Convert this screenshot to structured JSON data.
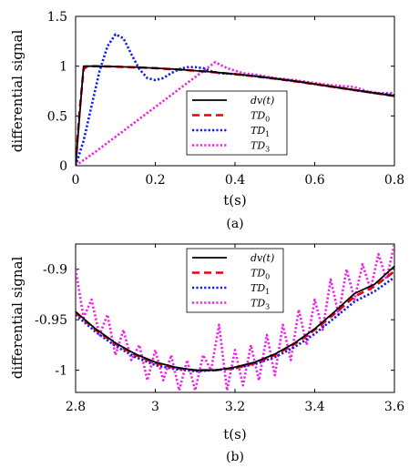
{
  "chart_data": [
    {
      "type": "line",
      "caption": "(a)",
      "xlabel": "t(s)",
      "ylabel": "differential signal",
      "xlim": [
        0,
        0.8
      ],
      "ylim": [
        0,
        1.5
      ],
      "xticks": [
        0,
        0.2,
        0.4,
        0.6,
        0.8
      ],
      "yticks": [
        0,
        0.5,
        1,
        1.5
      ],
      "xtick_labels": [
        "0",
        "0.2",
        "0.4",
        "0.6",
        "0.8"
      ],
      "ytick_labels": [
        "0",
        "0.5",
        "1",
        "1.5"
      ],
      "legend_position": "center-right",
      "series": [
        {
          "name": "dv(t)",
          "label_main": "dv",
          "label_sub": "",
          "label_suffix": "(t)",
          "color": "#000000",
          "style": "solid",
          "points": [
            [
              0.0,
              0.0
            ],
            [
              0.02,
              1.0
            ],
            [
              0.05,
              1.0
            ],
            [
              0.1,
              0.995
            ],
            [
              0.15,
              0.99
            ],
            [
              0.2,
              0.98
            ],
            [
              0.25,
              0.97
            ],
            [
              0.3,
              0.955
            ],
            [
              0.35,
              0.94
            ],
            [
              0.4,
              0.92
            ],
            [
              0.45,
              0.9
            ],
            [
              0.5,
              0.875
            ],
            [
              0.55,
              0.85
            ],
            [
              0.6,
              0.82
            ],
            [
              0.65,
              0.79
            ],
            [
              0.7,
              0.76
            ],
            [
              0.75,
              0.73
            ],
            [
              0.8,
              0.7
            ]
          ]
        },
        {
          "name": "TD0",
          "label_main": "TD",
          "label_sub": "0",
          "label_suffix": "",
          "color": "#e8000b",
          "style": "dashed",
          "points": [
            [
              0.0,
              0.0
            ],
            [
              0.01,
              0.55
            ],
            [
              0.02,
              0.97
            ],
            [
              0.03,
              1.0
            ],
            [
              0.05,
              1.0
            ],
            [
              0.1,
              0.995
            ],
            [
              0.2,
              0.98
            ],
            [
              0.3,
              0.955
            ],
            [
              0.4,
              0.92
            ],
            [
              0.5,
              0.875
            ],
            [
              0.6,
              0.82
            ],
            [
              0.7,
              0.76
            ],
            [
              0.8,
              0.7
            ]
          ]
        },
        {
          "name": "TD1",
          "label_main": "TD",
          "label_sub": "1",
          "label_suffix": "",
          "color": "#0b1bf2",
          "style": "dotted",
          "points": [
            [
              0.0,
              0.0
            ],
            [
              0.02,
              0.25
            ],
            [
              0.04,
              0.6
            ],
            [
              0.06,
              0.95
            ],
            [
              0.08,
              1.2
            ],
            [
              0.1,
              1.32
            ],
            [
              0.12,
              1.28
            ],
            [
              0.14,
              1.12
            ],
            [
              0.16,
              0.97
            ],
            [
              0.18,
              0.88
            ],
            [
              0.2,
              0.86
            ],
            [
              0.22,
              0.88
            ],
            [
              0.24,
              0.93
            ],
            [
              0.26,
              0.97
            ],
            [
              0.28,
              0.99
            ],
            [
              0.3,
              0.99
            ],
            [
              0.32,
              0.98
            ],
            [
              0.34,
              0.95
            ],
            [
              0.36,
              0.93
            ],
            [
              0.4,
              0.92
            ],
            [
              0.45,
              0.9
            ],
            [
              0.5,
              0.875
            ],
            [
              0.55,
              0.85
            ],
            [
              0.6,
              0.82
            ],
            [
              0.65,
              0.79
            ],
            [
              0.7,
              0.76
            ],
            [
              0.75,
              0.73
            ],
            [
              0.8,
              0.71
            ]
          ]
        },
        {
          "name": "TD3",
          "label_main": "TD",
          "label_sub": "3",
          "label_suffix": "",
          "color": "#f020e8",
          "style": "dotted",
          "points": [
            [
              0.0,
              0.0
            ],
            [
              0.05,
              0.14
            ],
            [
              0.1,
              0.29
            ],
            [
              0.15,
              0.44
            ],
            [
              0.2,
              0.59
            ],
            [
              0.25,
              0.74
            ],
            [
              0.3,
              0.89
            ],
            [
              0.35,
              1.04
            ],
            [
              0.38,
              0.98
            ],
            [
              0.42,
              0.93
            ],
            [
              0.46,
              0.91
            ],
            [
              0.5,
              0.88
            ],
            [
              0.55,
              0.86
            ],
            [
              0.6,
              0.83
            ],
            [
              0.64,
              0.81
            ],
            [
              0.67,
              0.8
            ],
            [
              0.7,
              0.79
            ],
            [
              0.73,
              0.75
            ],
            [
              0.76,
              0.73
            ],
            [
              0.8,
              0.73
            ]
          ]
        }
      ]
    },
    {
      "type": "line",
      "caption": "(b)",
      "xlabel": "t(s)",
      "ylabel": "differential signal",
      "xlim": [
        2.8,
        3.6
      ],
      "ylim": [
        -1.022,
        -0.875
      ],
      "xticks": [
        2.8,
        3,
        3.2,
        3.4,
        3.6
      ],
      "yticks": [
        -1,
        -0.95,
        -0.9
      ],
      "xtick_labels": [
        "2.8",
        "3",
        "3.2",
        "3.4",
        "3.6"
      ],
      "ytick_labels": [
        "-1",
        "-0.95",
        "-0.9"
      ],
      "legend_position": "top-center",
      "series": [
        {
          "name": "dv(t)",
          "label_main": "dv",
          "label_sub": "",
          "label_suffix": "(t)",
          "color": "#000000",
          "style": "solid",
          "points": [
            [
              2.8,
              -0.942
            ],
            [
              2.85,
              -0.959
            ],
            [
              2.9,
              -0.973
            ],
            [
              2.95,
              -0.984
            ],
            [
              3.0,
              -0.992
            ],
            [
              3.05,
              -0.997
            ],
            [
              3.1,
              -1.0
            ],
            [
              3.15,
              -1.0
            ],
            [
              3.2,
              -0.997
            ],
            [
              3.25,
              -0.992
            ],
            [
              3.3,
              -0.984
            ],
            [
              3.35,
              -0.973
            ],
            [
              3.4,
              -0.959
            ],
            [
              3.45,
              -0.942
            ],
            [
              3.5,
              -0.924
            ],
            [
              3.55,
              -0.915
            ],
            [
              3.6,
              -0.897
            ]
          ]
        },
        {
          "name": "TD0",
          "label_main": "TD",
          "label_sub": "0",
          "label_suffix": "",
          "color": "#e8000b",
          "style": "dashed",
          "points": [
            [
              2.8,
              -0.943
            ],
            [
              2.85,
              -0.96
            ],
            [
              2.9,
              -0.974
            ],
            [
              2.95,
              -0.985
            ],
            [
              3.0,
              -0.993
            ],
            [
              3.05,
              -0.998
            ],
            [
              3.1,
              -1.0
            ],
            [
              3.15,
              -1.0
            ],
            [
              3.2,
              -0.998
            ],
            [
              3.25,
              -0.993
            ],
            [
              3.3,
              -0.985
            ],
            [
              3.35,
              -0.974
            ],
            [
              3.4,
              -0.96
            ],
            [
              3.45,
              -0.944
            ],
            [
              3.5,
              -0.927
            ],
            [
              3.55,
              -0.917
            ],
            [
              3.6,
              -0.902
            ]
          ]
        },
        {
          "name": "TD1",
          "label_main": "TD",
          "label_sub": "1",
          "label_suffix": "",
          "color": "#0b1bf2",
          "style": "dotted",
          "points": [
            [
              2.8,
              -0.945
            ],
            [
              2.85,
              -0.962
            ],
            [
              2.9,
              -0.976
            ],
            [
              2.95,
              -0.987
            ],
            [
              3.0,
              -0.995
            ],
            [
              3.05,
              -0.999
            ],
            [
              3.1,
              -1.001
            ],
            [
              3.15,
              -1.0
            ],
            [
              3.2,
              -0.998
            ],
            [
              3.25,
              -0.994
            ],
            [
              3.3,
              -0.987
            ],
            [
              3.35,
              -0.977
            ],
            [
              3.4,
              -0.964
            ],
            [
              3.45,
              -0.948
            ],
            [
              3.5,
              -0.932
            ],
            [
              3.55,
              -0.922
            ],
            [
              3.6,
              -0.908
            ]
          ]
        },
        {
          "name": "TD3",
          "label_main": "TD",
          "label_sub": "3",
          "label_suffix": "",
          "color": "#f020e8",
          "style": "dotted",
          "points": [
            [
              2.8,
              -0.9
            ],
            [
              2.82,
              -0.948
            ],
            [
              2.84,
              -0.93
            ],
            [
              2.86,
              -0.965
            ],
            [
              2.88,
              -0.945
            ],
            [
              2.9,
              -0.985
            ],
            [
              2.92,
              -0.96
            ],
            [
              2.94,
              -0.99
            ],
            [
              2.96,
              -0.975
            ],
            [
              2.98,
              -1.01
            ],
            [
              3.0,
              -0.98
            ],
            [
              3.02,
              -1.01
            ],
            [
              3.04,
              -0.985
            ],
            [
              3.06,
              -1.02
            ],
            [
              3.08,
              -0.99
            ],
            [
              3.1,
              -1.02
            ],
            [
              3.12,
              -0.985
            ],
            [
              3.14,
              -1.0
            ],
            [
              3.16,
              -0.955
            ],
            [
              3.18,
              -1.02
            ],
            [
              3.2,
              -0.98
            ],
            [
              3.22,
              -1.015
            ],
            [
              3.24,
              -0.975
            ],
            [
              3.26,
              -1.01
            ],
            [
              3.28,
              -0.965
            ],
            [
              3.3,
              -1.005
            ],
            [
              3.32,
              -0.955
            ],
            [
              3.34,
              -0.99
            ],
            [
              3.36,
              -0.94
            ],
            [
              3.38,
              -0.975
            ],
            [
              3.4,
              -0.93
            ],
            [
              3.42,
              -0.96
            ],
            [
              3.44,
              -0.91
            ],
            [
              3.46,
              -0.945
            ],
            [
              3.48,
              -0.9
            ],
            [
              3.5,
              -0.93
            ],
            [
              3.52,
              -0.895
            ],
            [
              3.54,
              -0.92
            ],
            [
              3.56,
              -0.885
            ],
            [
              3.58,
              -0.91
            ],
            [
              3.6,
              -0.875
            ]
          ]
        }
      ]
    }
  ]
}
